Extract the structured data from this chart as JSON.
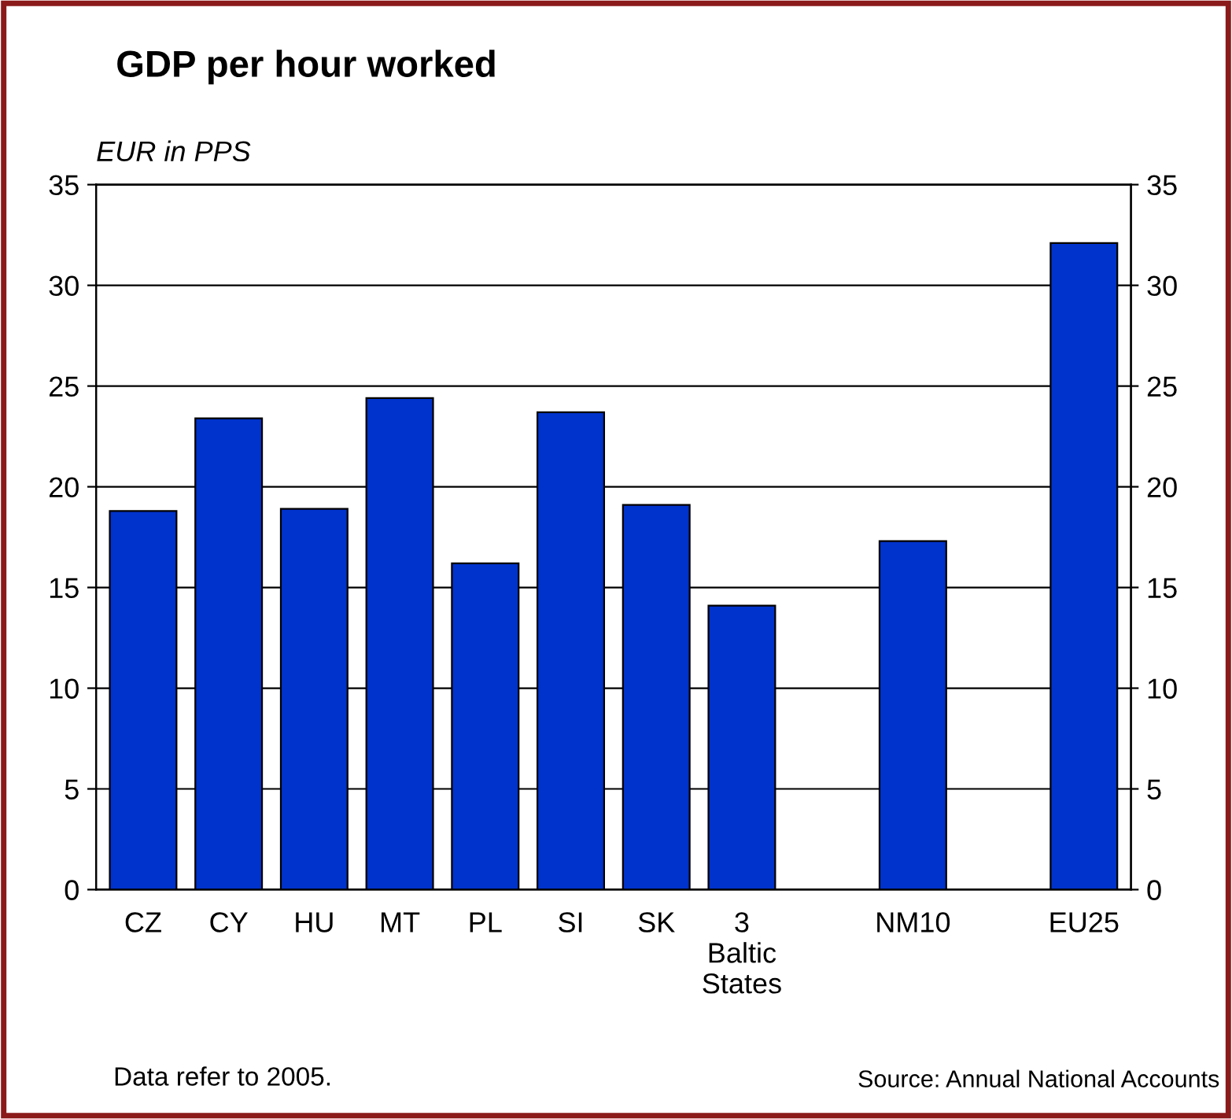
{
  "chart_data": {
    "type": "bar",
    "title": "GDP per hour worked",
    "ylabel": "EUR in PPS",
    "categories": [
      "CZ",
      "CY",
      "HU",
      "MT",
      "PL",
      "SI",
      "SK",
      "3\nBaltic\nStates",
      null,
      "NM10",
      null,
      "EU25"
    ],
    "values": [
      18.8,
      23.4,
      18.9,
      24.4,
      16.2,
      23.7,
      19.1,
      14.1,
      null,
      17.3,
      null,
      32.1
    ],
    "color": "#0033cc",
    "ylim": [
      0,
      35
    ],
    "yticks": [
      0,
      5,
      10,
      15,
      20,
      25,
      30,
      35
    ],
    "y2lim": [
      0,
      35
    ],
    "y2ticks": [
      0,
      5,
      10,
      15,
      20,
      25,
      30,
      35
    ],
    "grid": "y",
    "annotations": [
      "Data refer to 2005.",
      "Source: Annual National Accounts"
    ]
  }
}
